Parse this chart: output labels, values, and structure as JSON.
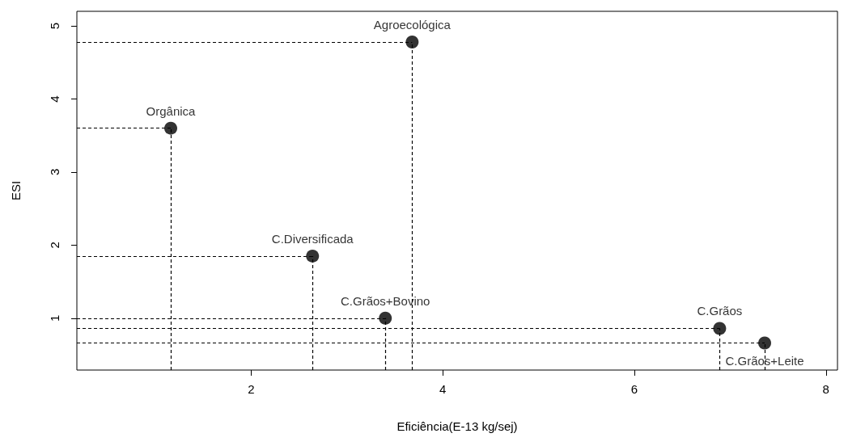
{
  "chart_data": {
    "type": "scatter",
    "xlabel": "Eficiência(E-13 kg/sej)",
    "ylabel": "ESI",
    "xlim": [
      0.18,
      8.12
    ],
    "xticks": [
      2,
      4,
      6,
      8
    ],
    "ylim": [
      0.29,
      5.2
    ],
    "yticks": [
      1,
      2,
      3,
      4,
      5
    ],
    "grid": false,
    "legend": false,
    "marker": "circle",
    "line_style": "dashed",
    "series": [
      {
        "name": "Agroecológica",
        "color": "#000000",
        "x": [
          3.68
        ],
        "values": [
          4.78
        ]
      },
      {
        "name": "Orgânica",
        "color": "#000000",
        "x": [
          1.16
        ],
        "values": [
          3.6
        ]
      },
      {
        "name": "C.Diversificada",
        "color": "#000000",
        "x": [
          2.64
        ],
        "values": [
          1.85
        ]
      },
      {
        "name": "C.Grãos+Bovino",
        "color": "#000000",
        "x": [
          3.4
        ],
        "values": [
          1.0
        ]
      },
      {
        "name": "C.Grãos",
        "color": "#000000",
        "x": [
          6.89
        ],
        "values": [
          0.86
        ]
      },
      {
        "name": "C.Grãos+Leite",
        "color": "#000000",
        "x": [
          7.36
        ],
        "values": [
          0.66
        ]
      }
    ]
  }
}
